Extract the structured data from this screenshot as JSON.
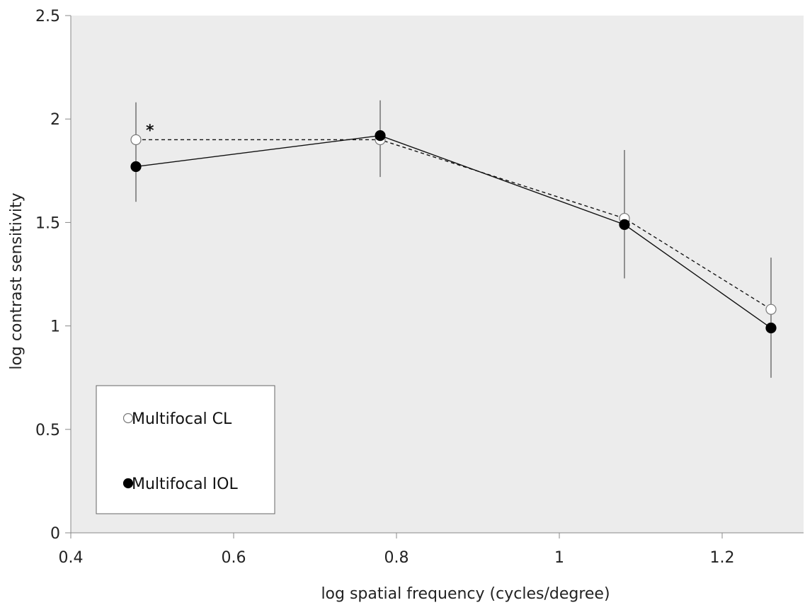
{
  "chart_data": {
    "type": "line",
    "title": "",
    "xlabel": "log spatial frequency (cycles/degree)",
    "ylabel": "log contrast sensitivity",
    "xlim": [
      0.4,
      1.3
    ],
    "ylim": [
      0,
      2.5
    ],
    "xticks": [
      0.4,
      0.6,
      0.8,
      1.0,
      1.2
    ],
    "xtick_labels": [
      "0.4",
      "0.6",
      "0.8",
      "1",
      "1.2"
    ],
    "yticks": [
      0,
      0.5,
      1.0,
      1.5,
      2.0,
      2.5
    ],
    "ytick_labels": [
      "0",
      "0.5",
      "1",
      "1.5",
      "2",
      "2.5"
    ],
    "grid": false,
    "plot_background": "#ececec",
    "legend_position": "bottom-left",
    "series": [
      {
        "name": "Multifocal CL",
        "marker": "open-circle",
        "line_style": "dashed",
        "x": [
          0.48,
          0.78,
          1.08,
          1.26
        ],
        "y": [
          1.9,
          1.9,
          1.52,
          1.08
        ],
        "y_err_low": [
          1.6,
          1.72,
          1.23,
          0.75
        ],
        "y_err_high": [
          2.08,
          2.09,
          1.85,
          1.33
        ]
      },
      {
        "name": "Multifocal IOL",
        "marker": "filled-circle",
        "line_style": "solid",
        "x": [
          0.48,
          0.78,
          1.08,
          1.26
        ],
        "y": [
          1.77,
          1.92,
          1.49,
          0.99
        ],
        "y_err_low": [
          1.6,
          1.72,
          1.23,
          0.75
        ],
        "y_err_high": [
          2.08,
          2.09,
          1.85,
          1.33
        ]
      }
    ],
    "annotations": [
      {
        "text": "*",
        "x": 0.48,
        "series": "Multifocal CL"
      }
    ]
  }
}
